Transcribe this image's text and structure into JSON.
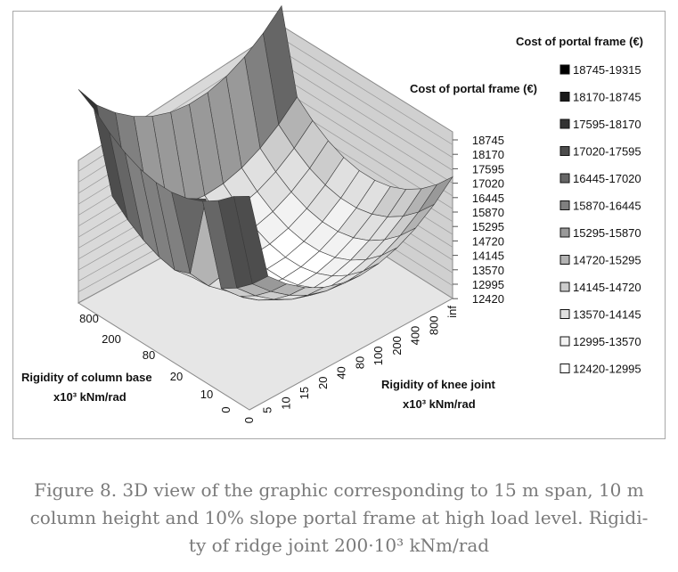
{
  "chart_data": {
    "type": "surface",
    "title": "Cost of portal frame (€)",
    "zlabel": "Cost of portal frame (€)",
    "xlabel_line1": "Rigidity of knee joint",
    "xlabel_line2": "x10³ kNm/rad",
    "ylabel_line1": "Rigidity of column base",
    "ylabel_line2": "x10³ kNm/rad",
    "x_ticks": [
      "0",
      "5",
      "10",
      "15",
      "20",
      "40",
      "80",
      "100",
      "200",
      "400",
      "800",
      "inf"
    ],
    "y_ticks": [
      "800",
      "200",
      "80",
      "20",
      "10",
      "0"
    ],
    "z_ticks": [
      "18745",
      "18170",
      "17595",
      "17020",
      "16445",
      "15870",
      "15295",
      "14720",
      "14145",
      "13570",
      "12995",
      "12420"
    ],
    "legend_title": "Cost of portal frame (€)",
    "legend": [
      {
        "label": "18745-19315",
        "color": "#000000"
      },
      {
        "label": "18170-18745",
        "color": "#1a1a1a"
      },
      {
        "label": "17595-18170",
        "color": "#333333"
      },
      {
        "label": "17020-17595",
        "color": "#4d4d4d"
      },
      {
        "label": "16445-17020",
        "color": "#666666"
      },
      {
        "label": "15870-16445",
        "color": "#808080"
      },
      {
        "label": "15295-15870",
        "color": "#999999"
      },
      {
        "label": "14720-15295",
        "color": "#b3b3b3"
      },
      {
        "label": "14145-14720",
        "color": "#cccccc"
      },
      {
        "label": "13570-14145",
        "color": "#e0e0e0"
      },
      {
        "label": "12995-13570",
        "color": "#f2f2f2"
      },
      {
        "label": "12420-12995",
        "color": "#ffffff"
      }
    ],
    "z_range": [
      12420,
      19315
    ]
  },
  "caption": {
    "line1": "Figure 8. 3D view of the graphic corresponding to 15 m span, 10 m",
    "line2": "column height and 10% slope portal frame at high load level. Rigidi-",
    "line3": "ty of ridge joint 200·10³ kNm/rad"
  }
}
